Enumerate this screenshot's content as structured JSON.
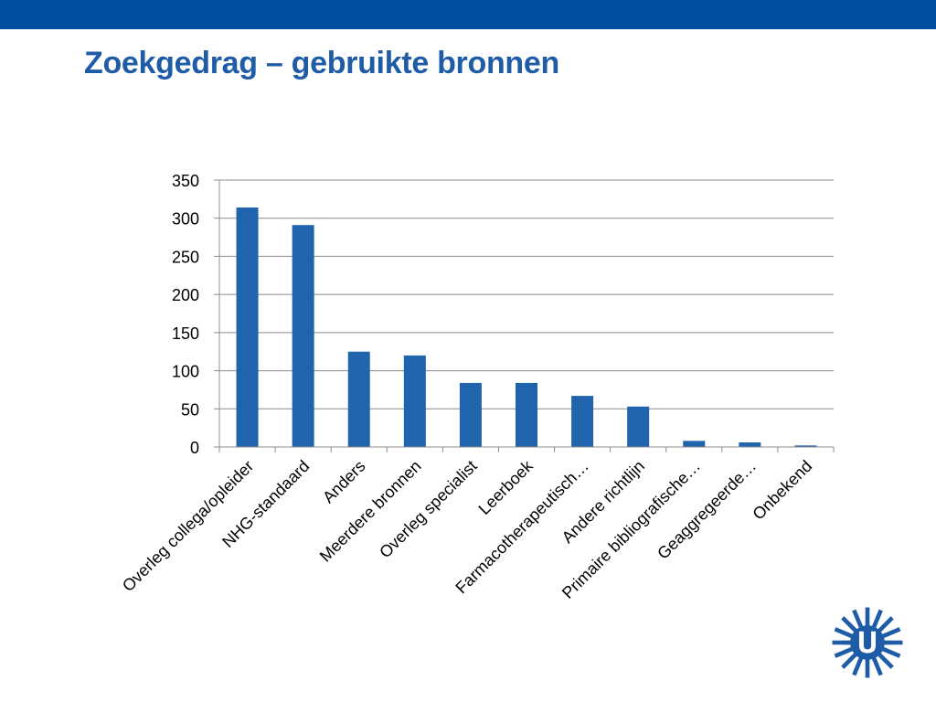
{
  "slide": {
    "title": "Zoekgedrag – gebruikte bronnen"
  },
  "colors": {
    "top_bar": "#004f9f",
    "title": "#1f5ca8",
    "bar": "#1f64ad",
    "gridline": "#8c8c8c",
    "axis": "#8c8c8c",
    "logo": "#1f5ca8"
  },
  "icons": {
    "logo": "utrecht-university-sun-logo-icon"
  },
  "chart_data": {
    "type": "bar",
    "categories": [
      "Overleg collega/opleider",
      "NHG-standaard",
      "Anders",
      "Meerdere bronnen",
      "Overleg specialist",
      "Leerboek",
      "Farmacotherapeutisch…",
      "Andere richtlijn",
      "Primaire bibliografische…",
      "Geaggregeerde…",
      "Onbekend"
    ],
    "values": [
      314,
      291,
      125,
      120,
      84,
      84,
      67,
      53,
      8,
      6,
      2
    ],
    "ylim": [
      0,
      350
    ],
    "yticks": [
      0,
      50,
      100,
      150,
      200,
      250,
      300,
      350
    ],
    "grid": true,
    "legend": "none"
  }
}
